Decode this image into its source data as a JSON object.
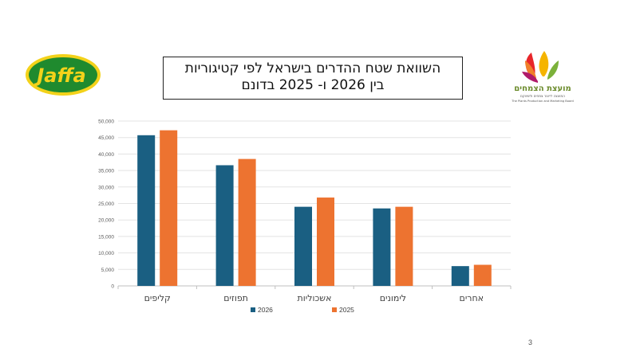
{
  "slide": {
    "title_line1": "השוואת שטח ההדרים בישראל לפי קטיגוריות",
    "title_line2": "בין 2026 ו- 2025 בדונם",
    "page_number": "3"
  },
  "logos": {
    "jaffa_text": "Jaffa",
    "board_text_he": "מועצת הצמחים",
    "board_sub_he": "המועצה לייצור צמחים ולשיווקם",
    "board_sub_en": "The Plants Production and Marketing Board"
  },
  "colors": {
    "series_2026": "#1a5f82",
    "series_2025": "#ed7330",
    "grid": "#e3e3e3",
    "axis": "#bfbfbf",
    "jaffa_green": "#1f8a2e",
    "jaffa_yellow": "#f3d21a"
  },
  "chart_data": {
    "type": "bar",
    "categories": [
      "קליפים",
      "תפוזים",
      "אשכוליות",
      "לימונים",
      "אחרים"
    ],
    "series": [
      {
        "name": "2026",
        "values": [
          45700,
          36600,
          24000,
          23500,
          6000
        ]
      },
      {
        "name": "2025",
        "values": [
          47200,
          38500,
          26800,
          24000,
          6400
        ]
      }
    ],
    "yticks": [
      "0",
      "5,000",
      "10,000",
      "15,000",
      "20,000",
      "25,000",
      "30,000",
      "35,000",
      "40,000",
      "45,000",
      "50,000"
    ],
    "ylim": [
      0,
      50000
    ],
    "grid": true,
    "legend_position": "bottom"
  }
}
